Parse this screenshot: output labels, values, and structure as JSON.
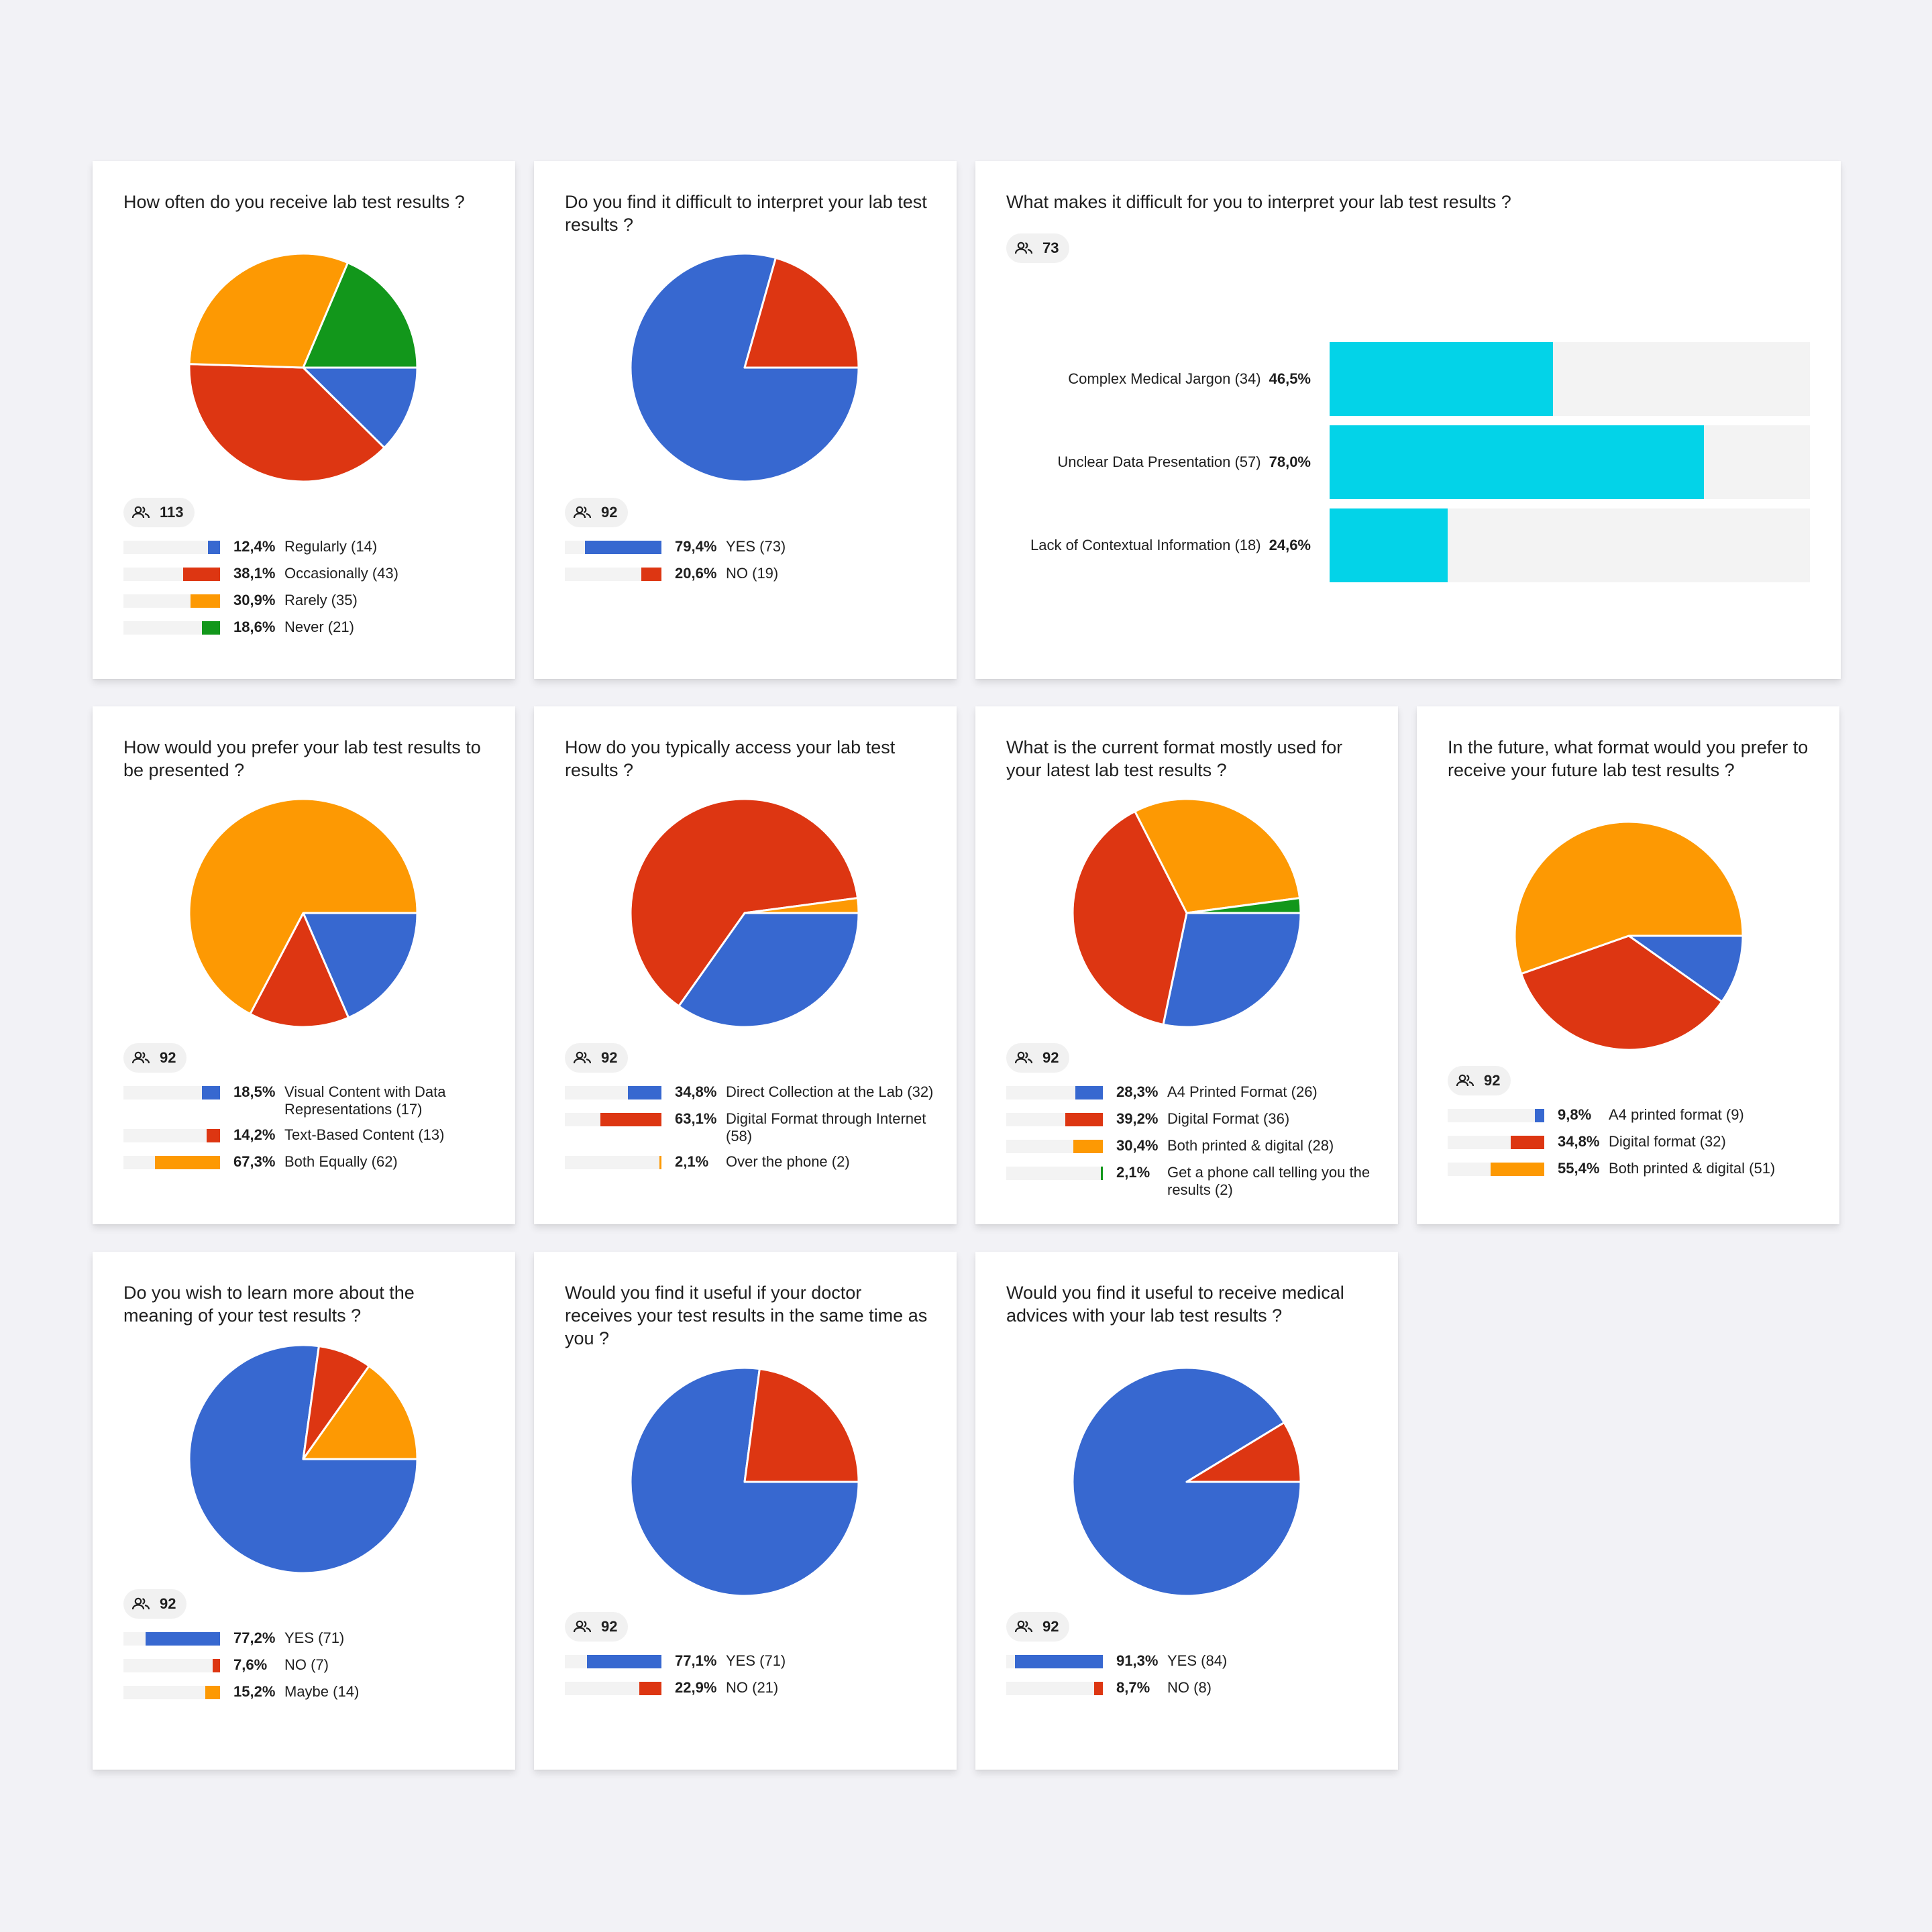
{
  "colors": {
    "blue": "#3768d0",
    "red": "#dd3612",
    "orange": "#fd9903",
    "green": "#12971b",
    "cyan": "#03d3e8",
    "track": "#f3f3f3",
    "background": "#f2f2f6"
  },
  "chart_data": [
    {
      "type": "pie",
      "title": "How often do you receive lab test results ?",
      "respondents": "113",
      "slices": [
        {
          "label": "Regularly (14)",
          "pct": "12,4%",
          "value": 12.4,
          "color": "#3768d0"
        },
        {
          "label": "Occasionally (43)",
          "pct": "38,1%",
          "value": 38.1,
          "color": "#dd3612"
        },
        {
          "label": "Rarely (35)",
          "pct": "30,9%",
          "value": 30.9,
          "color": "#fd9903"
        },
        {
          "label": "Never (21)",
          "pct": "18,6%",
          "value": 18.6,
          "color": "#12971b"
        }
      ]
    },
    {
      "type": "pie",
      "title": "Do you find it difficult to interpret your lab test results ?",
      "respondents": "92",
      "slices": [
        {
          "label": "YES (73)",
          "pct": "79,4%",
          "value": 79.4,
          "color": "#3768d0"
        },
        {
          "label": "NO (19)",
          "pct": "20,6%",
          "value": 20.6,
          "color": "#dd3612"
        }
      ]
    },
    {
      "type": "bar",
      "orientation": "horizontal",
      "title": "What makes it difficult for you to interpret your lab test results ?",
      "respondents": "73",
      "xlim": [
        0,
        100
      ],
      "bars": [
        {
          "label": "Complex Medical Jargon (34)",
          "pct": "46,5%",
          "value": 46.5
        },
        {
          "label": "Unclear Data Presentation (57)",
          "pct": "78,0%",
          "value": 78.0
        },
        {
          "label": "Lack of Contextual Information (18)",
          "pct": "24,6%",
          "value": 24.6
        }
      ]
    },
    {
      "type": "pie",
      "title": "How would you prefer your lab test results to be presented ?",
      "respondents": "92",
      "slices": [
        {
          "label": "Visual Content with Data Representations (17)",
          "pct": "18,5%",
          "value": 18.5,
          "color": "#3768d0"
        },
        {
          "label": "Text-Based Content (13)",
          "pct": "14,2%",
          "value": 14.2,
          "color": "#dd3612"
        },
        {
          "label": "Both Equally (62)",
          "pct": "67,3%",
          "value": 67.3,
          "color": "#fd9903"
        }
      ]
    },
    {
      "type": "pie",
      "title": "How do you typically access your lab test results ?",
      "respondents": "92",
      "slices": [
        {
          "label": "Direct Collection at the Lab (32)",
          "pct": "34,8%",
          "value": 34.8,
          "color": "#3768d0"
        },
        {
          "label": "Digital Format through Internet (58)",
          "pct": "63,1%",
          "value": 63.1,
          "color": "#dd3612"
        },
        {
          "label": "Over the phone (2)",
          "pct": "2,1%",
          "value": 2.1,
          "color": "#fd9903"
        }
      ]
    },
    {
      "type": "pie",
      "title": "What is the current format mostly used for your latest lab test results ?",
      "respondents": "92",
      "slices": [
        {
          "label": "A4 Printed Format (26)",
          "pct": "28,3%",
          "value": 28.3,
          "color": "#3768d0"
        },
        {
          "label": "Digital Format (36)",
          "pct": "39,2%",
          "value": 39.2,
          "color": "#dd3612"
        },
        {
          "label": "Both printed & digital (28)",
          "pct": "30,4%",
          "value": 30.4,
          "color": "#fd9903"
        },
        {
          "label": "Get a phone call telling you the results (2)",
          "pct": "2,1%",
          "value": 2.1,
          "color": "#12971b"
        }
      ]
    },
    {
      "type": "pie",
      "title": "In the future, what format would you prefer to receive your future lab test results ?",
      "respondents": "92",
      "slices": [
        {
          "label": "A4 printed format (9)",
          "pct": "9,8%",
          "value": 9.8,
          "color": "#3768d0"
        },
        {
          "label": "Digital format (32)",
          "pct": "34,8%",
          "value": 34.8,
          "color": "#dd3612"
        },
        {
          "label": "Both printed & digital (51)",
          "pct": "55,4%",
          "value": 55.4,
          "color": "#fd9903"
        }
      ]
    },
    {
      "type": "pie",
      "title": "Do you wish to learn more about the meaning of your test results ?",
      "respondents": "92",
      "slices": [
        {
          "label": "YES (71)",
          "pct": "77,2%",
          "value": 77.2,
          "color": "#3768d0"
        },
        {
          "label": "NO (7)",
          "pct": "7,6%",
          "value": 7.6,
          "color": "#dd3612"
        },
        {
          "label": "Maybe (14)",
          "pct": "15,2%",
          "value": 15.2,
          "color": "#fd9903"
        }
      ]
    },
    {
      "type": "pie",
      "title": "Would you find it useful if your doctor receives your test results in the same time as you ?",
      "respondents": "92",
      "slices": [
        {
          "label": "YES (71)",
          "pct": "77,1%",
          "value": 77.1,
          "color": "#3768d0"
        },
        {
          "label": "NO (21)",
          "pct": "22,9%",
          "value": 22.9,
          "color": "#dd3612"
        }
      ]
    },
    {
      "type": "pie",
      "title": "Would you find it useful to receive medical advices with your lab test results ?",
      "respondents": "92",
      "slices": [
        {
          "label": "YES (84)",
          "pct": "91,3%",
          "value": 91.3,
          "color": "#3768d0"
        },
        {
          "label": "NO (8)",
          "pct": "8,7%",
          "value": 8.7,
          "color": "#dd3612"
        }
      ]
    }
  ]
}
